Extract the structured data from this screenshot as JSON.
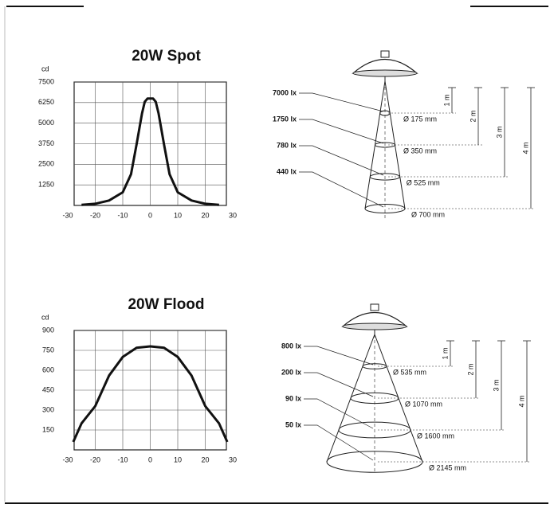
{
  "chart_data": [
    {
      "type": "line",
      "title": "20W Spot",
      "y_label": "cd",
      "x": [
        -25,
        -20,
        -15,
        -10,
        -7,
        -5,
        -3,
        -2,
        -1,
        0,
        1,
        2,
        3,
        5,
        7,
        10,
        15,
        20,
        25
      ],
      "values": [
        40,
        100,
        300,
        800,
        1900,
        3700,
        5600,
        6300,
        6500,
        6500,
        6500,
        6300,
        5600,
        3700,
        1900,
        800,
        300,
        100,
        40
      ],
      "color": "#111111",
      "xlim": [
        -30,
        30
      ],
      "xticks": [
        -30,
        -20,
        -10,
        0,
        10,
        20,
        30
      ],
      "ylim": [
        0,
        7500
      ],
      "yticks": [
        1250,
        2500,
        3750,
        5000,
        6250,
        7500
      ],
      "grid": true
    },
    {
      "type": "line",
      "title": "20W Flood",
      "y_label": "cd",
      "x": [
        -28,
        -25,
        -20,
        -15,
        -10,
        -5,
        0,
        5,
        10,
        15,
        20,
        25,
        28
      ],
      "values": [
        60,
        200,
        330,
        560,
        700,
        770,
        780,
        770,
        700,
        560,
        330,
        200,
        60
      ],
      "color": "#111111",
      "xlim": [
        -30,
        30
      ],
      "xticks": [
        -30,
        -20,
        -10,
        0,
        10,
        20,
        30
      ],
      "ylim": [
        0,
        900
      ],
      "yticks": [
        150,
        300,
        450,
        600,
        750,
        900
      ],
      "grid": true
    }
  ],
  "diagrams": [
    {
      "lux": [
        "7000 lx",
        "1750 lx",
        "780 lx",
        "440 lx"
      ],
      "distances": [
        "1 m",
        "2 m",
        "3 m",
        "4 m"
      ],
      "diameters": [
        "Ø 175 mm",
        "Ø 350 mm",
        "Ø 525 mm",
        "Ø 700 mm"
      ]
    },
    {
      "lux": [
        "800 lx",
        "200 lx",
        "90 lx",
        "50 lx"
      ],
      "distances": [
        "1 m",
        "2 m",
        "3 m",
        "4 m"
      ],
      "diameters": [
        "Ø 535 mm",
        "Ø 1070 mm",
        "Ø 1600 mm",
        "Ø 2145 mm"
      ]
    }
  ]
}
